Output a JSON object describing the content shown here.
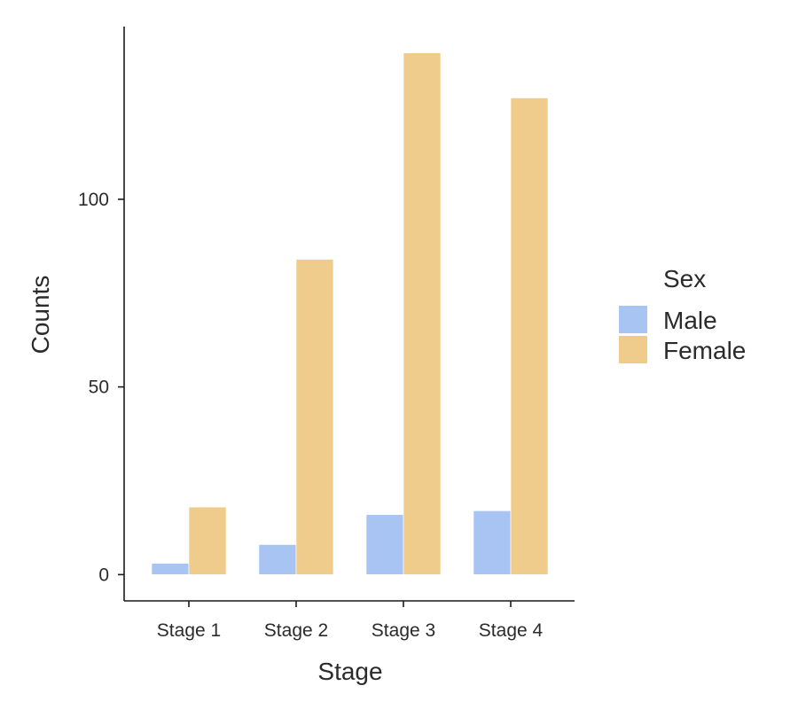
{
  "chart_data": {
    "type": "bar",
    "categories": [
      "Stage 1",
      "Stage 2",
      "Stage 3",
      "Stage 4"
    ],
    "series": [
      {
        "name": "Male",
        "values": [
          3,
          8,
          16,
          17
        ],
        "color": "#a7c4f2"
      },
      {
        "name": "Female",
        "values": [
          18,
          84,
          139,
          127
        ],
        "color": "#efcc8c"
      }
    ],
    "xlabel": "Stage",
    "ylabel": "Counts",
    "yticks": [
      0,
      50,
      100
    ],
    "ylim": [
      -7,
      146
    ],
    "grid": false,
    "legend": {
      "title": "Sex",
      "position": "right"
    }
  }
}
